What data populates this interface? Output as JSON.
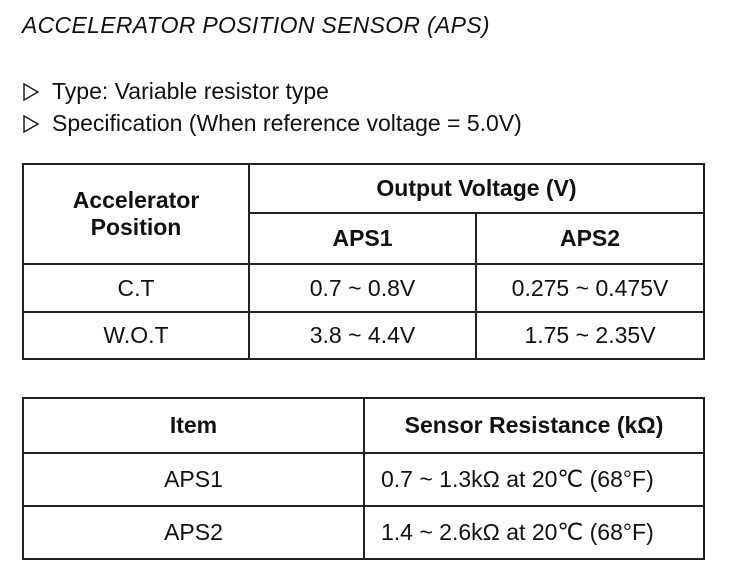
{
  "title": "ACCELERATOR POSITION SENSOR (APS)",
  "bullets": [
    "Type: Variable resistor type",
    "Specification (When reference voltage = 5.0V)"
  ],
  "voltage_table": {
    "header": {
      "position": "Accelerator Position",
      "group": "Output Voltage (V)",
      "sub": [
        "APS1",
        "APS2"
      ]
    },
    "rows": [
      [
        "C.T",
        "0.7 ~ 0.8V",
        "0.275 ~ 0.475V"
      ],
      [
        "W.O.T",
        "3.8 ~ 4.4V",
        "1.75 ~ 2.35V"
      ]
    ]
  },
  "resistance_table": {
    "header": [
      "Item",
      "Sensor Resistance (kΩ)"
    ],
    "rows": [
      [
        "APS1",
        "0.7 ~ 1.3kΩ at 20℃ (68°F)"
      ],
      [
        "APS2",
        "1.4 ~ 2.6kΩ at 20℃ (68°F)"
      ]
    ]
  }
}
